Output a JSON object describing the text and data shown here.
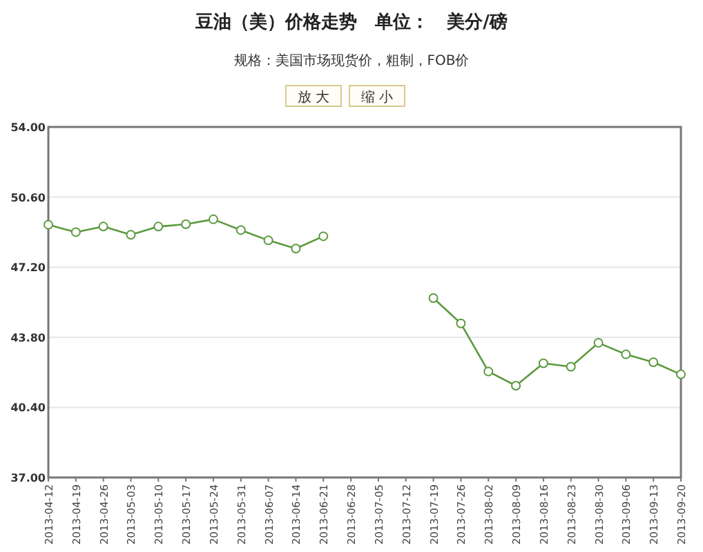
{
  "chart_data": {
    "type": "line",
    "title": "豆油（美）价格走势　单位：　美分/磅",
    "subtitle": "规格：美国市场现货价，粗制，FOB价",
    "annotations": [
      "放 大",
      "缩 小"
    ],
    "categories": [
      "2013-04-12",
      "2013-04-19",
      "2013-04-26",
      "2013-05-03",
      "2013-05-10",
      "2013-05-17",
      "2013-05-24",
      "2013-05-31",
      "2013-06-07",
      "2013-06-14",
      "2013-06-21",
      "2013-06-28",
      "2013-07-05",
      "2013-07-12",
      "2013-07-19",
      "2013-07-26",
      "2013-08-02",
      "2013-08-09",
      "2013-08-16",
      "2013-08-23",
      "2013-08-30",
      "2013-09-06",
      "2013-09-13",
      "2013-09-20"
    ],
    "series": [
      {
        "color": "#5b9a3e",
        "values": [
          49.26,
          48.9,
          49.17,
          48.77,
          49.17,
          49.28,
          49.52,
          49.0,
          48.5,
          48.1,
          48.7,
          null,
          null,
          null,
          45.7,
          44.47,
          42.14,
          41.45,
          42.54,
          42.37,
          43.53,
          42.97,
          42.59,
          42.0
        ]
      }
    ],
    "ylim": [
      37,
      54
    ],
    "yticks": [
      {
        "value": 37,
        "label": "37.00"
      },
      {
        "value": 40.4,
        "label": "40.40"
      },
      {
        "value": 43.8,
        "label": "43.80"
      },
      {
        "value": 47.2,
        "label": "47.20"
      },
      {
        "value": 50.6,
        "label": "50.60"
      },
      {
        "value": 54,
        "label": "54.00"
      }
    ],
    "grid": "y",
    "marker": "circle",
    "line_style": "solid"
  }
}
